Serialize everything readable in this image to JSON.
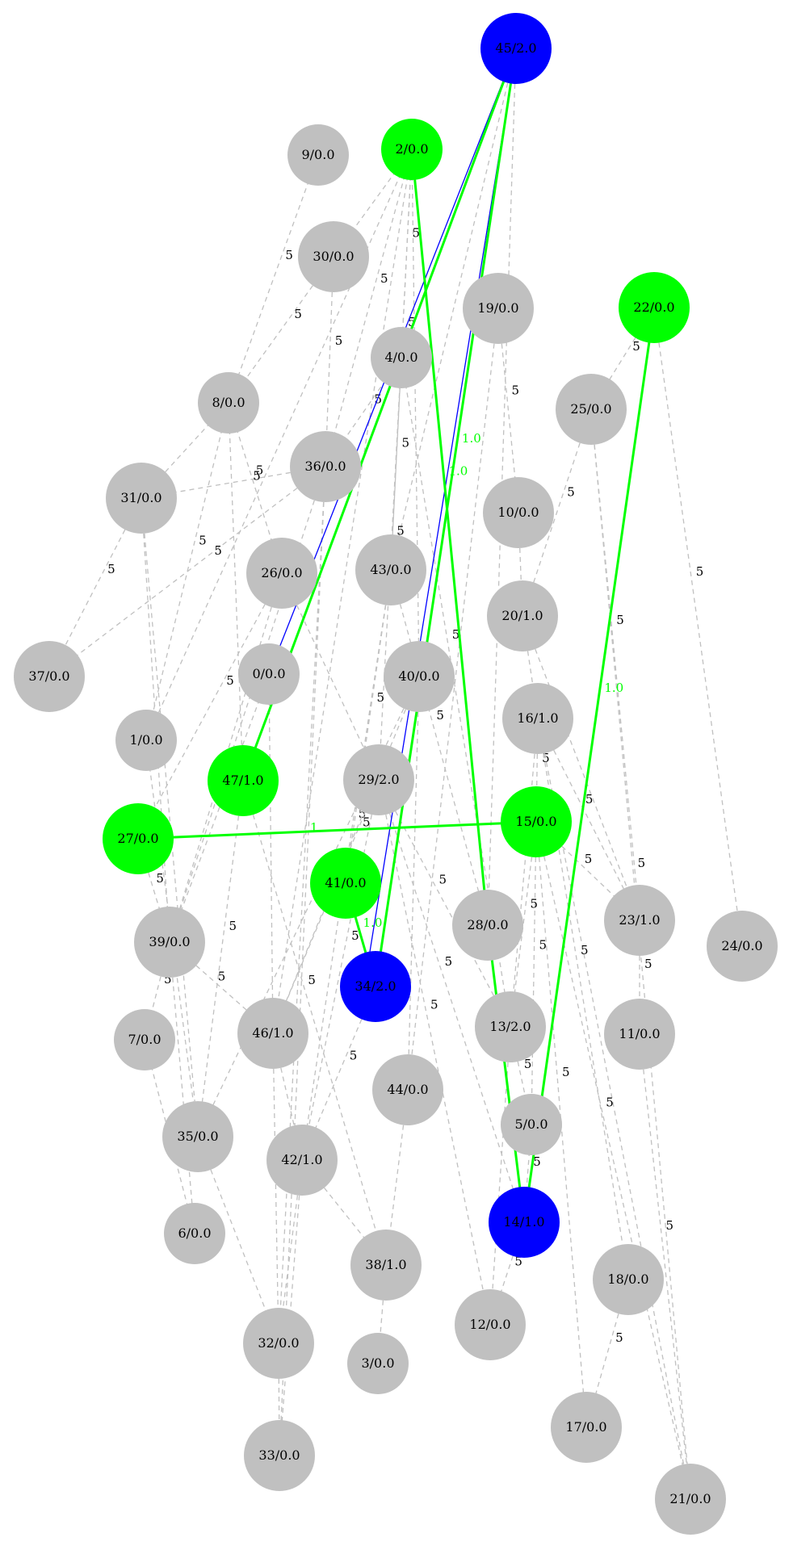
{
  "colors": {
    "default_node": "#c0c0c0",
    "green": "#00ff00",
    "blue": "#0000ff",
    "dashed_edge": "#c0c0c0",
    "label_dark": "#000000"
  },
  "nodes": [
    {
      "id": "45",
      "label": "45/2.0",
      "color": "blue"
    },
    {
      "id": "9",
      "label": "9/0.0",
      "color": "default_node"
    },
    {
      "id": "2",
      "label": "2/0.0",
      "color": "green"
    },
    {
      "id": "30",
      "label": "30/0.0",
      "color": "default_node"
    },
    {
      "id": "19",
      "label": "19/0.0",
      "color": "default_node"
    },
    {
      "id": "22",
      "label": "22/0.0",
      "color": "green"
    },
    {
      "id": "4",
      "label": "4/0.0",
      "color": "default_node"
    },
    {
      "id": "8",
      "label": "8/0.0",
      "color": "default_node"
    },
    {
      "id": "25",
      "label": "25/0.0",
      "color": "default_node"
    },
    {
      "id": "36",
      "label": "36/0.0",
      "color": "default_node"
    },
    {
      "id": "31",
      "label": "31/0.0",
      "color": "default_node"
    },
    {
      "id": "10",
      "label": "10/0.0",
      "color": "default_node"
    },
    {
      "id": "26",
      "label": "26/0.0",
      "color": "default_node"
    },
    {
      "id": "43",
      "label": "43/0.0",
      "color": "default_node"
    },
    {
      "id": "20",
      "label": "20/1.0",
      "color": "default_node"
    },
    {
      "id": "37",
      "label": "37/0.0",
      "color": "default_node"
    },
    {
      "id": "0",
      "label": "0/0.0",
      "color": "default_node"
    },
    {
      "id": "40",
      "label": "40/0.0",
      "color": "default_node"
    },
    {
      "id": "16",
      "label": "16/1.0",
      "color": "default_node"
    },
    {
      "id": "1",
      "label": "1/0.0",
      "color": "default_node"
    },
    {
      "id": "47",
      "label": "47/1.0",
      "color": "green"
    },
    {
      "id": "29",
      "label": "29/2.0",
      "color": "default_node"
    },
    {
      "id": "27",
      "label": "27/0.0",
      "color": "green"
    },
    {
      "id": "15",
      "label": "15/0.0",
      "color": "green"
    },
    {
      "id": "41",
      "label": "41/0.0",
      "color": "green"
    },
    {
      "id": "28",
      "label": "28/0.0",
      "color": "default_node"
    },
    {
      "id": "23",
      "label": "23/1.0",
      "color": "default_node"
    },
    {
      "id": "24",
      "label": "24/0.0",
      "color": "default_node"
    },
    {
      "id": "39",
      "label": "39/0.0",
      "color": "default_node"
    },
    {
      "id": "34",
      "label": "34/2.0",
      "color": "blue"
    },
    {
      "id": "7",
      "label": "7/0.0",
      "color": "default_node"
    },
    {
      "id": "46",
      "label": "46/1.0",
      "color": "default_node"
    },
    {
      "id": "13",
      "label": "13/2.0",
      "color": "default_node"
    },
    {
      "id": "11",
      "label": "11/0.0",
      "color": "default_node"
    },
    {
      "id": "44",
      "label": "44/0.0",
      "color": "default_node"
    },
    {
      "id": "35",
      "label": "35/0.0",
      "color": "default_node"
    },
    {
      "id": "5",
      "label": "5/0.0",
      "color": "default_node"
    },
    {
      "id": "42",
      "label": "42/1.0",
      "color": "default_node"
    },
    {
      "id": "14",
      "label": "14/1.0",
      "color": "blue"
    },
    {
      "id": "6",
      "label": "6/0.0",
      "color": "default_node"
    },
    {
      "id": "38",
      "label": "38/1.0",
      "color": "default_node"
    },
    {
      "id": "18",
      "label": "18/0.0",
      "color": "default_node"
    },
    {
      "id": "12",
      "label": "12/0.0",
      "color": "default_node"
    },
    {
      "id": "32",
      "label": "32/0.0",
      "color": "default_node"
    },
    {
      "id": "3",
      "label": "3/0.0",
      "color": "default_node"
    },
    {
      "id": "17",
      "label": "17/0.0",
      "color": "default_node"
    },
    {
      "id": "33",
      "label": "33/0.0",
      "color": "default_node"
    },
    {
      "id": "21",
      "label": "21/0.0",
      "color": "default_node"
    }
  ],
  "edges": [
    {
      "from": "45",
      "to": "47",
      "style": "green",
      "label": "1.0"
    },
    {
      "from": "45",
      "to": "34",
      "style": "green",
      "label": "1.0"
    },
    {
      "from": "45",
      "to": "0",
      "style": "blue",
      "label": ""
    },
    {
      "from": "45",
      "to": "34",
      "style": "blue",
      "label": "",
      "variant": "alt"
    },
    {
      "from": "2",
      "to": "28",
      "style": "green",
      "label": "1.0"
    },
    {
      "from": "22",
      "to": "14",
      "style": "green",
      "label": "1.0"
    },
    {
      "from": "27",
      "to": "15",
      "style": "green",
      "label": "1"
    },
    {
      "from": "41",
      "to": "34",
      "style": "green",
      "label": "1.0"
    },
    {
      "from": "28",
      "to": "14",
      "style": "green",
      "label": ""
    },
    {
      "from": "9",
      "to": "8",
      "style": "dashed",
      "label": "5"
    },
    {
      "from": "30",
      "to": "8",
      "style": "dashed",
      "label": "5"
    },
    {
      "from": "30",
      "to": "36",
      "style": "dashed",
      "label": "5"
    },
    {
      "from": "2",
      "to": "30",
      "style": "dashed",
      "label": ""
    },
    {
      "from": "2",
      "to": "4",
      "style": "dashed",
      "label": "5"
    },
    {
      "from": "2",
      "to": "36",
      "style": "dashed",
      "label": "5"
    },
    {
      "from": "2",
      "to": "43",
      "style": "dashed",
      "label": "5"
    },
    {
      "from": "2",
      "to": "40",
      "style": "dashed",
      "label": ""
    },
    {
      "from": "2",
      "to": "46",
      "style": "dashed",
      "label": ""
    },
    {
      "from": "2",
      "to": "1",
      "style": "dashed",
      "label": ""
    },
    {
      "from": "45",
      "to": "43",
      "style": "dashed",
      "label": ""
    },
    {
      "from": "45",
      "to": "28",
      "style": "dashed",
      "label": ""
    },
    {
      "from": "19",
      "to": "10",
      "style": "dashed",
      "label": "5"
    },
    {
      "from": "19",
      "to": "44",
      "style": "dashed",
      "label": ""
    },
    {
      "from": "22",
      "to": "25",
      "style": "dashed",
      "label": "5"
    },
    {
      "from": "22",
      "to": "24",
      "style": "dashed",
      "label": "5"
    },
    {
      "from": "25",
      "to": "20",
      "style": "dashed",
      "label": "5"
    },
    {
      "from": "25",
      "to": "23",
      "style": "dashed",
      "label": "5"
    },
    {
      "from": "25",
      "to": "21",
      "style": "dashed",
      "label": "5"
    },
    {
      "from": "8",
      "to": "31",
      "style": "dashed",
      "label": ""
    },
    {
      "from": "8",
      "to": "26",
      "style": "dashed",
      "label": "5"
    },
    {
      "from": "8",
      "to": "1",
      "style": "dashed",
      "label": "5"
    },
    {
      "from": "8",
      "to": "47",
      "style": "dashed",
      "label": ""
    },
    {
      "from": "36",
      "to": "31",
      "style": "dashed",
      "label": "5"
    },
    {
      "from": "36",
      "to": "37",
      "style": "dashed",
      "label": "5"
    },
    {
      "from": "36",
      "to": "39",
      "style": "dashed",
      "label": "5"
    },
    {
      "from": "36",
      "to": "32",
      "style": "dashed",
      "label": ""
    },
    {
      "from": "36",
      "to": "33",
      "style": "dashed",
      "label": ""
    },
    {
      "from": "31",
      "to": "37",
      "style": "dashed",
      "label": "5"
    },
    {
      "from": "31",
      "to": "39",
      "style": "dashed",
      "label": ""
    },
    {
      "from": "31",
      "to": "35",
      "style": "dashed",
      "label": ""
    },
    {
      "from": "4",
      "to": "43",
      "style": "dashed",
      "label": "5"
    },
    {
      "from": "4",
      "to": "36",
      "style": "dashed",
      "label": "5"
    },
    {
      "from": "4",
      "to": "13",
      "style": "dashed",
      "label": "5"
    },
    {
      "from": "4",
      "to": "29",
      "style": "dashed",
      "label": "5"
    },
    {
      "from": "10",
      "to": "20",
      "style": "dashed",
      "label": ""
    },
    {
      "from": "20",
      "to": "16",
      "style": "dashed",
      "label": ""
    },
    {
      "from": "20",
      "to": "23",
      "style": "dashed",
      "label": ""
    },
    {
      "from": "16",
      "to": "23",
      "style": "dashed",
      "label": "5"
    },
    {
      "from": "16",
      "to": "15",
      "style": "dashed",
      "label": "5"
    },
    {
      "from": "16",
      "to": "13",
      "style": "dashed",
      "label": "5"
    },
    {
      "from": "16",
      "to": "21",
      "style": "dashed",
      "label": "5"
    },
    {
      "from": "16",
      "to": "18",
      "style": "dashed",
      "label": "5"
    },
    {
      "from": "15",
      "to": "5",
      "style": "dashed",
      "label": "5"
    },
    {
      "from": "15",
      "to": "13",
      "style": "dashed",
      "label": "5"
    },
    {
      "from": "15",
      "to": "17",
      "style": "dashed",
      "label": "5"
    },
    {
      "from": "15",
      "to": "21",
      "style": "dashed",
      "label": "5"
    },
    {
      "from": "15",
      "to": "23",
      "style": "dashed",
      "label": "5"
    },
    {
      "from": "23",
      "to": "11",
      "style": "dashed",
      "label": "5"
    },
    {
      "from": "11",
      "to": "21",
      "style": "dashed",
      "label": "5"
    },
    {
      "from": "18",
      "to": "17",
      "style": "dashed",
      "label": "5"
    },
    {
      "from": "26",
      "to": "27",
      "style": "dashed",
      "label": "5"
    },
    {
      "from": "26",
      "to": "39",
      "style": "dashed",
      "label": ""
    },
    {
      "from": "26",
      "to": "29",
      "style": "dashed",
      "label": ""
    },
    {
      "from": "0",
      "to": "39",
      "style": "dashed",
      "label": ""
    },
    {
      "from": "0",
      "to": "46",
      "style": "dashed",
      "label": ""
    },
    {
      "from": "43",
      "to": "41",
      "style": "dashed",
      "label": "5"
    },
    {
      "from": "43",
      "to": "28",
      "style": "dashed",
      "label": "5"
    },
    {
      "from": "43",
      "to": "42",
      "style": "dashed",
      "label": "5"
    },
    {
      "from": "40",
      "to": "46",
      "style": "dashed",
      "label": "5"
    },
    {
      "from": "40",
      "to": "44",
      "style": "dashed",
      "label": ""
    },
    {
      "from": "40",
      "to": "35",
      "style": "dashed",
      "label": "5"
    },
    {
      "from": "29",
      "to": "46",
      "style": "dashed",
      "label": "5"
    },
    {
      "from": "29",
      "to": "13",
      "style": "dashed",
      "label": "5"
    },
    {
      "from": "29",
      "to": "12",
      "style": "dashed",
      "label": "5"
    },
    {
      "from": "29",
      "to": "14",
      "style": "dashed",
      "label": "5"
    },
    {
      "from": "29",
      "to": "42",
      "style": "dashed",
      "label": "5"
    },
    {
      "from": "47",
      "to": "35",
      "style": "dashed",
      "label": "5"
    },
    {
      "from": "47",
      "to": "38",
      "style": "dashed",
      "label": "5"
    },
    {
      "from": "1",
      "to": "35",
      "style": "dashed",
      "label": ""
    },
    {
      "from": "27",
      "to": "39",
      "style": "dashed",
      "label": "5"
    },
    {
      "from": "39",
      "to": "7",
      "style": "dashed",
      "label": "5"
    },
    {
      "from": "39",
      "to": "6",
      "style": "dashed",
      "label": ""
    },
    {
      "from": "39",
      "to": "46",
      "style": "dashed",
      "label": "5"
    },
    {
      "from": "7",
      "to": "6",
      "style": "dashed",
      "label": ""
    },
    {
      "from": "46",
      "to": "42",
      "style": "dashed",
      "label": ""
    },
    {
      "from": "46",
      "to": "32",
      "style": "dashed",
      "label": ""
    },
    {
      "from": "35",
      "to": "32",
      "style": "dashed",
      "label": ""
    },
    {
      "from": "34",
      "to": "42",
      "style": "dashed",
      "label": "5"
    },
    {
      "from": "42",
      "to": "38",
      "style": "dashed",
      "label": ""
    },
    {
      "from": "42",
      "to": "32",
      "style": "dashed",
      "label": ""
    },
    {
      "from": "42",
      "to": "33",
      "style": "dashed",
      "label": ""
    },
    {
      "from": "32",
      "to": "33",
      "style": "dashed",
      "label": ""
    },
    {
      "from": "38",
      "to": "3",
      "style": "dashed",
      "label": ""
    },
    {
      "from": "44",
      "to": "38",
      "style": "dashed",
      "label": ""
    },
    {
      "from": "13",
      "to": "5",
      "style": "dashed",
      "label": "5"
    },
    {
      "from": "13",
      "to": "12",
      "style": "dashed",
      "label": ""
    },
    {
      "from": "14",
      "to": "12",
      "style": "dashed",
      "label": "5"
    },
    {
      "from": "5",
      "to": "14",
      "style": "dashed",
      "label": "5"
    }
  ]
}
